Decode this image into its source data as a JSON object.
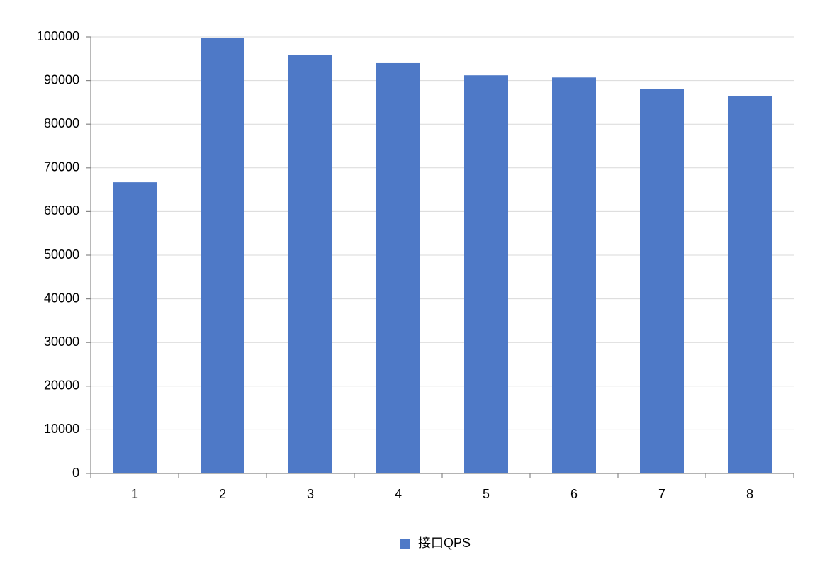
{
  "chart_data": {
    "type": "bar",
    "categories": [
      "1",
      "2",
      "3",
      "4",
      "5",
      "6",
      "7",
      "8"
    ],
    "series": [
      {
        "name": "接口QPS",
        "color": "#4e79c7",
        "values": [
          66700,
          99800,
          95800,
          94000,
          91200,
          90700,
          88000,
          86500
        ]
      }
    ],
    "ylim": [
      0,
      100000
    ],
    "yticks": [
      0,
      10000,
      20000,
      30000,
      40000,
      50000,
      60000,
      70000,
      80000,
      90000,
      100000
    ],
    "grid": true,
    "legend": "bottom"
  }
}
